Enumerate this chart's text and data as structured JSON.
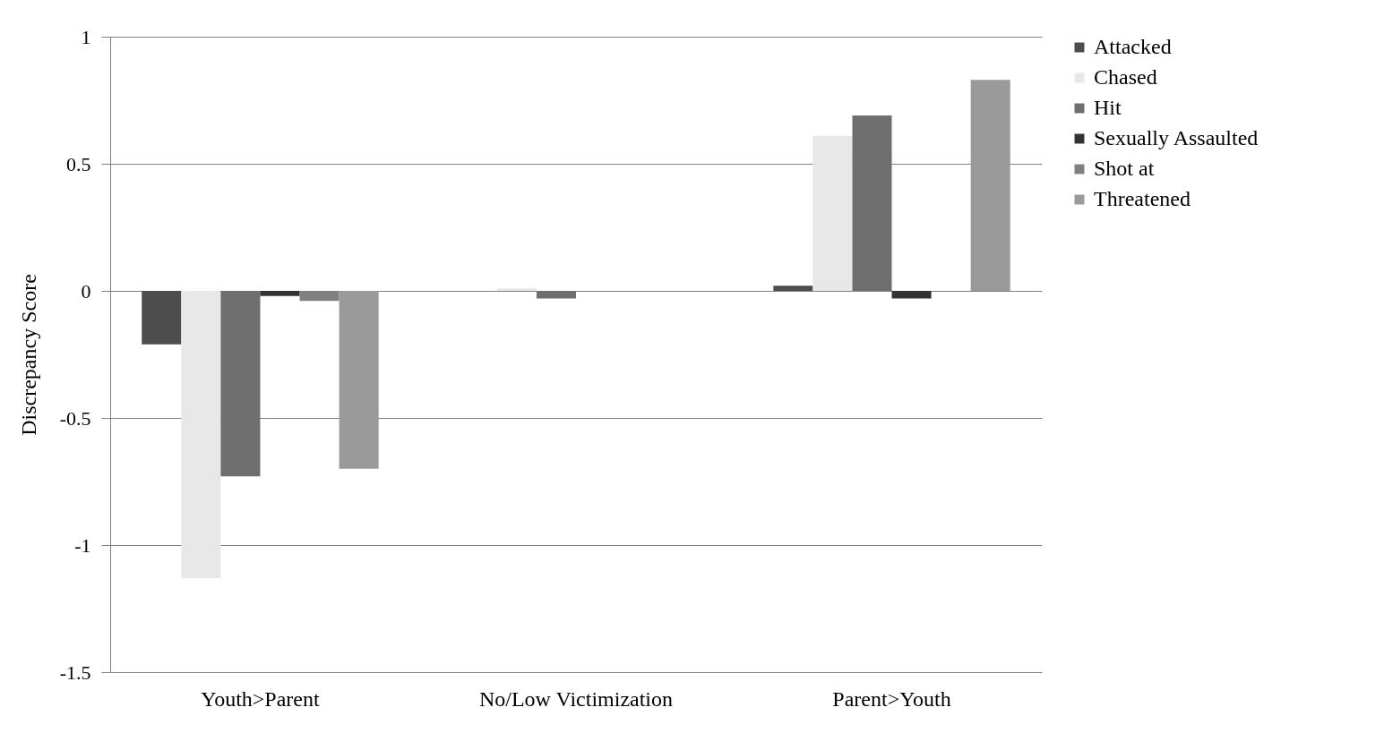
{
  "chart_data": {
    "type": "bar",
    "ylabel": "Discrepancy Score",
    "categories": [
      "Youth>Parent",
      "No/Low Victimization",
      "Parent>Youth"
    ],
    "series": [
      {
        "name": "Attacked",
        "color": "#4d4d4d",
        "values": [
          -0.21,
          0,
          0.02
        ]
      },
      {
        "name": "Chased",
        "color": "#e8e8e8",
        "values": [
          -1.13,
          0.01,
          0.61
        ]
      },
      {
        "name": "Hit",
        "color": "#6e6e6e",
        "values": [
          -0.73,
          -0.03,
          0.69
        ]
      },
      {
        "name": "Sexually Assaulted",
        "color": "#333333",
        "values": [
          -0.02,
          0,
          -0.03
        ]
      },
      {
        "name": "Shot at",
        "color": "#808080",
        "values": [
          -0.04,
          0,
          0
        ]
      },
      {
        "name": "Threatened",
        "color": "#9a9a9a",
        "values": [
          -0.7,
          0,
          0.83
        ]
      }
    ],
    "ylim": [
      -1.5,
      1
    ],
    "yticks": [
      -1.5,
      -1,
      -0.5,
      0,
      0.5,
      1
    ],
    "grid": "y",
    "legend": "right"
  }
}
